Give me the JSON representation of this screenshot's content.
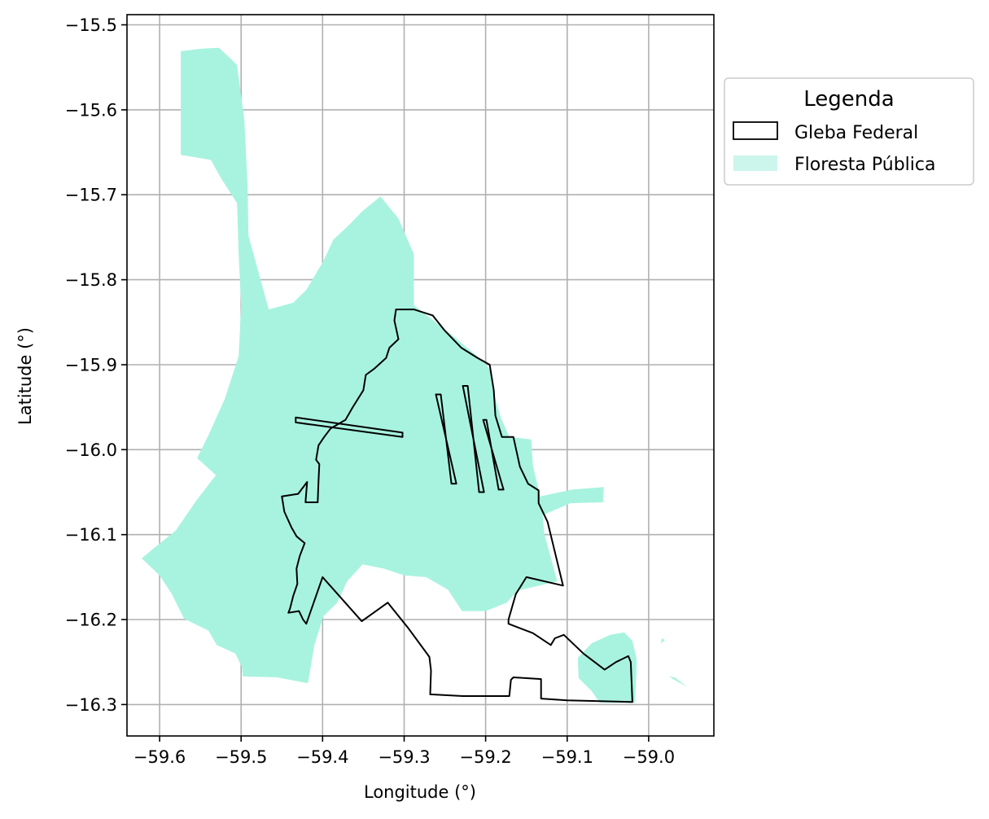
{
  "chart_data": {
    "type": "map",
    "x_axis": {
      "label": "Longitude (°)",
      "ticks": [
        -59.6,
        -59.5,
        -59.4,
        -59.3,
        -59.2,
        -59.1,
        -59.0
      ],
      "tick_labels": [
        "−59.6",
        "−59.5",
        "−59.4",
        "−59.3",
        "−59.2",
        "−59.1",
        "−59.0"
      ],
      "range": [
        -59.64,
        -58.92
      ]
    },
    "y_axis": {
      "label": "Latitude (°)",
      "ticks": [
        -15.5,
        -15.6,
        -15.7,
        -15.8,
        -15.9,
        -16.0,
        -16.1,
        -16.2,
        -16.3
      ],
      "tick_labels": [
        "−15.5",
        "−15.6",
        "−15.7",
        "−15.8",
        "−15.9",
        "−16.0",
        "−16.1",
        "−16.2",
        "−16.3"
      ],
      "range": [
        -16.337,
        -15.488
      ]
    },
    "grid": true,
    "legend": {
      "title": "Legenda",
      "placement": "outside-right-top",
      "entries": [
        {
          "label": "Gleba Federal",
          "style": "outline",
          "color": "#000000"
        },
        {
          "label": "Floresta Pública",
          "style": "fill",
          "color": "#A8F3DF"
        }
      ]
    },
    "layers": [
      {
        "name": "Floresta Pública",
        "color": "#A8F3DF",
        "polygons": [
          [
            [
              -59.574,
              -15.531
            ],
            [
              -59.548,
              -15.528
            ],
            [
              -59.527,
              -15.527
            ],
            [
              -59.505,
              -15.547
            ],
            [
              -59.496,
              -15.612
            ],
            [
              -59.492,
              -15.69
            ],
            [
              -59.491,
              -15.748
            ],
            [
              -59.466,
              -15.835
            ],
            [
              -59.436,
              -15.827
            ],
            [
              -59.42,
              -15.812
            ],
            [
              -59.399,
              -15.778
            ],
            [
              -59.387,
              -15.753
            ],
            [
              -59.367,
              -15.735
            ],
            [
              -59.352,
              -15.72
            ],
            [
              -59.329,
              -15.702
            ],
            [
              -59.307,
              -15.728
            ],
            [
              -59.288,
              -15.77
            ],
            [
              -59.288,
              -15.83
            ],
            [
              -59.268,
              -15.845
            ],
            [
              -59.235,
              -15.87
            ],
            [
              -59.202,
              -15.897
            ],
            [
              -59.193,
              -15.908
            ],
            [
              -59.188,
              -15.94
            ],
            [
              -59.181,
              -15.963
            ],
            [
              -59.171,
              -15.985
            ],
            [
              -59.144,
              -15.988
            ],
            [
              -59.142,
              -16.019
            ],
            [
              -59.133,
              -16.055
            ],
            [
              -59.094,
              -16.047
            ],
            [
              -59.055,
              -16.044
            ],
            [
              -59.056,
              -16.062
            ],
            [
              -59.096,
              -16.063
            ],
            [
              -59.13,
              -16.077
            ],
            [
              -59.128,
              -16.099
            ],
            [
              -59.112,
              -16.155
            ],
            [
              -59.161,
              -16.166
            ],
            [
              -59.174,
              -16.18
            ],
            [
              -59.2,
              -16.19
            ],
            [
              -59.229,
              -16.19
            ],
            [
              -59.246,
              -16.165
            ],
            [
              -59.273,
              -16.15
            ],
            [
              -59.3,
              -16.148
            ],
            [
              -59.325,
              -16.14
            ],
            [
              -59.351,
              -16.135
            ],
            [
              -59.37,
              -16.155
            ],
            [
              -59.382,
              -16.18
            ],
            [
              -59.399,
              -16.196
            ],
            [
              -59.41,
              -16.23
            ],
            [
              -59.418,
              -16.275
            ],
            [
              -59.456,
              -16.268
            ],
            [
              -59.498,
              -16.267
            ],
            [
              -59.499,
              -16.256
            ],
            [
              -59.507,
              -16.24
            ],
            [
              -59.53,
              -16.23
            ],
            [
              -59.54,
              -16.213
            ],
            [
              -59.57,
              -16.199
            ],
            [
              -59.585,
              -16.17
            ],
            [
              -59.6,
              -16.148
            ],
            [
              -59.622,
              -16.128
            ],
            [
              -59.607,
              -16.116
            ],
            [
              -59.58,
              -16.095
            ],
            [
              -59.555,
              -16.06
            ],
            [
              -59.531,
              -16.03
            ],
            [
              -59.554,
              -16.01
            ],
            [
              -59.54,
              -15.983
            ],
            [
              -59.52,
              -15.94
            ],
            [
              -59.503,
              -15.89
            ],
            [
              -59.5,
              -15.83
            ],
            [
              -59.503,
              -15.77
            ],
            [
              -59.505,
              -15.71
            ],
            [
              -59.525,
              -15.68
            ],
            [
              -59.537,
              -15.659
            ],
            [
              -59.574,
              -15.653
            ]
          ],
          [
            [
              -59.03,
              -16.215
            ],
            [
              -59.02,
              -16.225
            ],
            [
              -59.015,
              -16.245
            ],
            [
              -59.015,
              -16.26
            ],
            [
              -59.017,
              -16.298
            ],
            [
              -59.06,
              -16.298
            ],
            [
              -59.07,
              -16.284
            ],
            [
              -59.086,
              -16.269
            ],
            [
              -59.087,
              -16.245
            ],
            [
              -59.07,
              -16.228
            ],
            [
              -59.047,
              -16.218
            ]
          ],
          [
            [
              -58.975,
              -16.267
            ],
            [
              -58.963,
              -16.274
            ],
            [
              -58.953,
              -16.279
            ],
            [
              -58.968,
              -16.268
            ]
          ],
          [
            [
              -58.985,
              -16.228
            ],
            [
              -58.98,
              -16.224
            ],
            [
              -58.984,
              -16.222
            ]
          ]
        ]
      },
      {
        "name": "Gleba Federal",
        "color": "#000000",
        "polygons": [
          [
            [
              -59.288,
              -15.835
            ],
            [
              -59.31,
              -15.835
            ],
            [
              -59.312,
              -15.848
            ],
            [
              -59.307,
              -15.87
            ],
            [
              -59.318,
              -15.88
            ],
            [
              -59.322,
              -15.892
            ],
            [
              -59.337,
              -15.905
            ],
            [
              -59.347,
              -15.912
            ],
            [
              -59.35,
              -15.93
            ],
            [
              -59.363,
              -15.95
            ],
            [
              -59.372,
              -15.965
            ],
            [
              -59.39,
              -15.975
            ],
            [
              -59.398,
              -15.985
            ],
            [
              -59.405,
              -15.995
            ],
            [
              -59.408,
              -16.012
            ],
            [
              -59.404,
              -16.017
            ],
            [
              -59.405,
              -16.037
            ],
            [
              -59.406,
              -16.062
            ],
            [
              -59.421,
              -16.062
            ],
            [
              -59.419,
              -16.038
            ],
            [
              -59.43,
              -16.052
            ],
            [
              -59.45,
              -16.055
            ],
            [
              -59.447,
              -16.073
            ],
            [
              -59.438,
              -16.092
            ],
            [
              -59.432,
              -16.102
            ],
            [
              -59.422,
              -16.11
            ],
            [
              -59.428,
              -16.125
            ],
            [
              -59.432,
              -16.14
            ],
            [
              -59.431,
              -16.158
            ],
            [
              -59.436,
              -16.172
            ],
            [
              -59.44,
              -16.187
            ],
            [
              -59.442,
              -16.192
            ],
            [
              -59.429,
              -16.19
            ],
            [
              -59.424,
              -16.2
            ],
            [
              -59.42,
              -16.205
            ],
            [
              -59.4,
              -16.15
            ],
            [
              -59.352,
              -16.202
            ],
            [
              -59.32,
              -16.18
            ],
            [
              -59.295,
              -16.21
            ],
            [
              -59.269,
              -16.244
            ],
            [
              -59.267,
              -16.26
            ],
            [
              -59.268,
              -16.288
            ],
            [
              -59.228,
              -16.29
            ],
            [
              -59.171,
              -16.29
            ],
            [
              -59.169,
              -16.271
            ],
            [
              -59.166,
              -16.268
            ],
            [
              -59.132,
              -16.27
            ],
            [
              -59.132,
              -16.293
            ],
            [
              -59.1,
              -16.295
            ],
            [
              -59.02,
              -16.297
            ],
            [
              -59.022,
              -16.25
            ],
            [
              -59.025,
              -16.243
            ],
            [
              -59.04,
              -16.25
            ],
            [
              -59.054,
              -16.259
            ],
            [
              -59.08,
              -16.24
            ],
            [
              -59.104,
              -16.218
            ],
            [
              -59.115,
              -16.222
            ],
            [
              -59.12,
              -16.23
            ],
            [
              -59.142,
              -16.216
            ],
            [
              -59.172,
              -16.205
            ],
            [
              -59.172,
              -16.2
            ],
            [
              -59.163,
              -16.17
            ],
            [
              -59.15,
              -16.15
            ],
            [
              -59.105,
              -16.16
            ],
            [
              -59.124,
              -16.085
            ],
            [
              -59.135,
              -16.063
            ],
            [
              -59.135,
              -16.048
            ],
            [
              -59.148,
              -16.04
            ],
            [
              -59.158,
              -16.02
            ],
            [
              -59.166,
              -15.985
            ],
            [
              -59.18,
              -15.985
            ],
            [
              -59.188,
              -15.96
            ],
            [
              -59.19,
              -15.93
            ],
            [
              -59.195,
              -15.9
            ],
            [
              -59.21,
              -15.892
            ],
            [
              -59.23,
              -15.88
            ],
            [
              -59.25,
              -15.86
            ],
            [
              -59.265,
              -15.842
            ]
          ],
          [
            [
              -59.433,
              -15.962
            ],
            [
              -59.302,
              -15.98
            ],
            [
              -59.302,
              -15.985
            ],
            [
              -59.433,
              -15.968
            ]
          ],
          [
            [
              -59.261,
              -15.935
            ],
            [
              -59.255,
              -15.935
            ],
            [
              -59.242,
              -16.04
            ],
            [
              -59.236,
              -16.04
            ]
          ],
          [
            [
              -59.228,
              -15.925
            ],
            [
              -59.222,
              -15.925
            ],
            [
              -59.208,
              -16.05
            ],
            [
              -59.202,
              -16.05
            ]
          ],
          [
            [
              -59.203,
              -15.965
            ],
            [
              -59.199,
              -15.965
            ],
            [
              -59.184,
              -16.047
            ],
            [
              -59.178,
              -16.047
            ]
          ]
        ]
      }
    ]
  },
  "legend_colors": {
    "floresta_fill": "#A8F3DF",
    "floresta_swatch": "#CCF6EB",
    "gleba_edge": "#000000"
  }
}
